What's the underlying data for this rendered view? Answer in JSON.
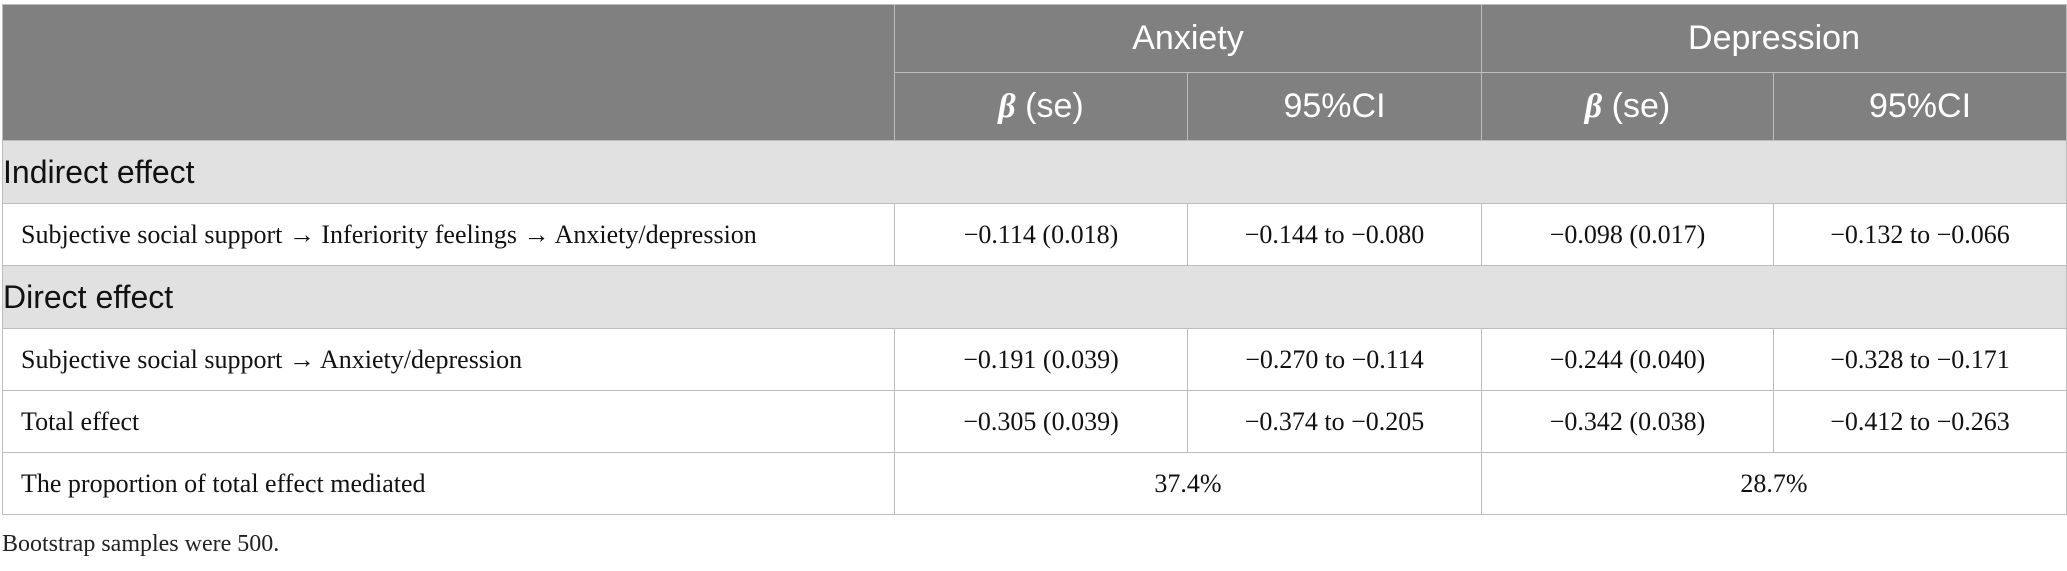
{
  "header": {
    "anxiety": "Anxiety",
    "depression": "Depression",
    "beta_symbol": "β",
    "beta_suffix": " (se)",
    "ci": "95%CI"
  },
  "sections": {
    "indirect": "Indirect effect",
    "direct": "Direct effect"
  },
  "rows": [
    {
      "label": "Subjective social support → Inferiority feelings → Anxiety/depression",
      "anx_beta": "−0.114 (0.018)",
      "anx_ci": "−0.144 to −0.080",
      "dep_beta": "−0.098 (0.017)",
      "dep_ci": "−0.132 to −0.066"
    },
    {
      "label": "Subjective social support → Anxiety/depression",
      "anx_beta": "−0.191 (0.039)",
      "anx_ci": "−0.270 to −0.114",
      "dep_beta": "−0.244 (0.040)",
      "dep_ci": "−0.328 to −0.171"
    },
    {
      "label": "Total effect",
      "anx_beta": "−0.305 (0.039)",
      "anx_ci": "−0.374 to −0.205",
      "dep_beta": "−0.342 (0.038)",
      "dep_ci": "−0.412 to −0.263"
    },
    {
      "label": "The proportion of total effect mediated",
      "anx_value": "37.4%",
      "dep_value": "28.7%"
    }
  ],
  "footnote": "Bootstrap samples were 500."
}
